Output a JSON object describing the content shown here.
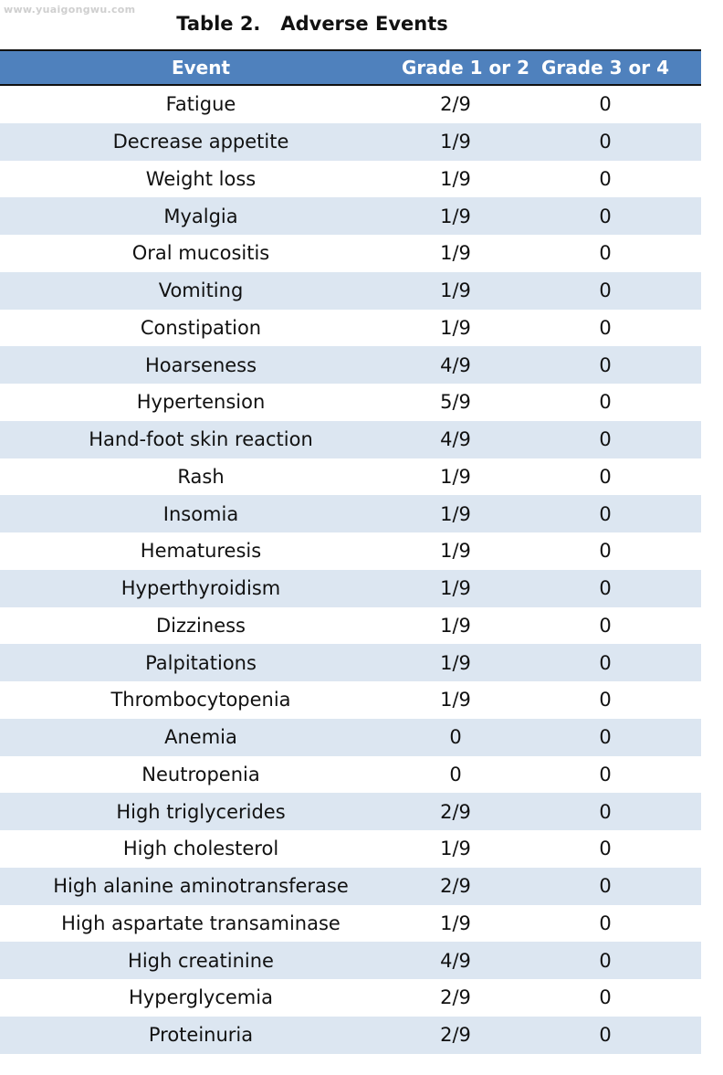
{
  "watermark": "www.yuaigongwu.com",
  "title": "Table 2.   Adverse Events",
  "columns": [
    "Event",
    "Grade 1 or 2",
    "Grade 3 or 4"
  ],
  "rows": [
    [
      "Fatigue",
      "2/9",
      "0"
    ],
    [
      "Decrease appetite",
      "1/9",
      "0"
    ],
    [
      "Weight loss",
      "1/9",
      "0"
    ],
    [
      "Myalgia",
      "1/9",
      "0"
    ],
    [
      "Oral mucositis",
      "1/9",
      "0"
    ],
    [
      "Vomiting",
      "1/9",
      "0"
    ],
    [
      "Constipation",
      "1/9",
      "0"
    ],
    [
      "Hoarseness",
      "4/9",
      "0"
    ],
    [
      "Hypertension",
      "5/9",
      "0"
    ],
    [
      "Hand-foot skin reaction",
      "4/9",
      "0"
    ],
    [
      "Rash",
      "1/9",
      "0"
    ],
    [
      "Insomia",
      "1/9",
      "0"
    ],
    [
      "Hematuresis",
      "1/9",
      "0"
    ],
    [
      "Hyperthyroidism",
      "1/9",
      "0"
    ],
    [
      "Dizziness",
      "1/9",
      "0"
    ],
    [
      "Palpitations",
      "1/9",
      "0"
    ],
    [
      "Thrombocytopenia",
      "1/9",
      "0"
    ],
    [
      "Anemia",
      "0",
      "0"
    ],
    [
      "Neutropenia",
      "0",
      "0"
    ],
    [
      "High triglycerides",
      "2/9",
      "0"
    ],
    [
      "High cholesterol",
      "1/9",
      "0"
    ],
    [
      "High alanine aminotransferase",
      "2/9",
      "0"
    ],
    [
      "High aspartate transaminase",
      "1/9",
      "0"
    ],
    [
      "High creatinine",
      "4/9",
      "0"
    ],
    [
      "Hyperglycemia",
      "2/9",
      "0"
    ],
    [
      "Proteinuria",
      "2/9",
      "0"
    ]
  ],
  "colors": {
    "header_bg": "#4f81bd",
    "band_bg": "#dce6f1",
    "header_text": "#ffffff"
  }
}
